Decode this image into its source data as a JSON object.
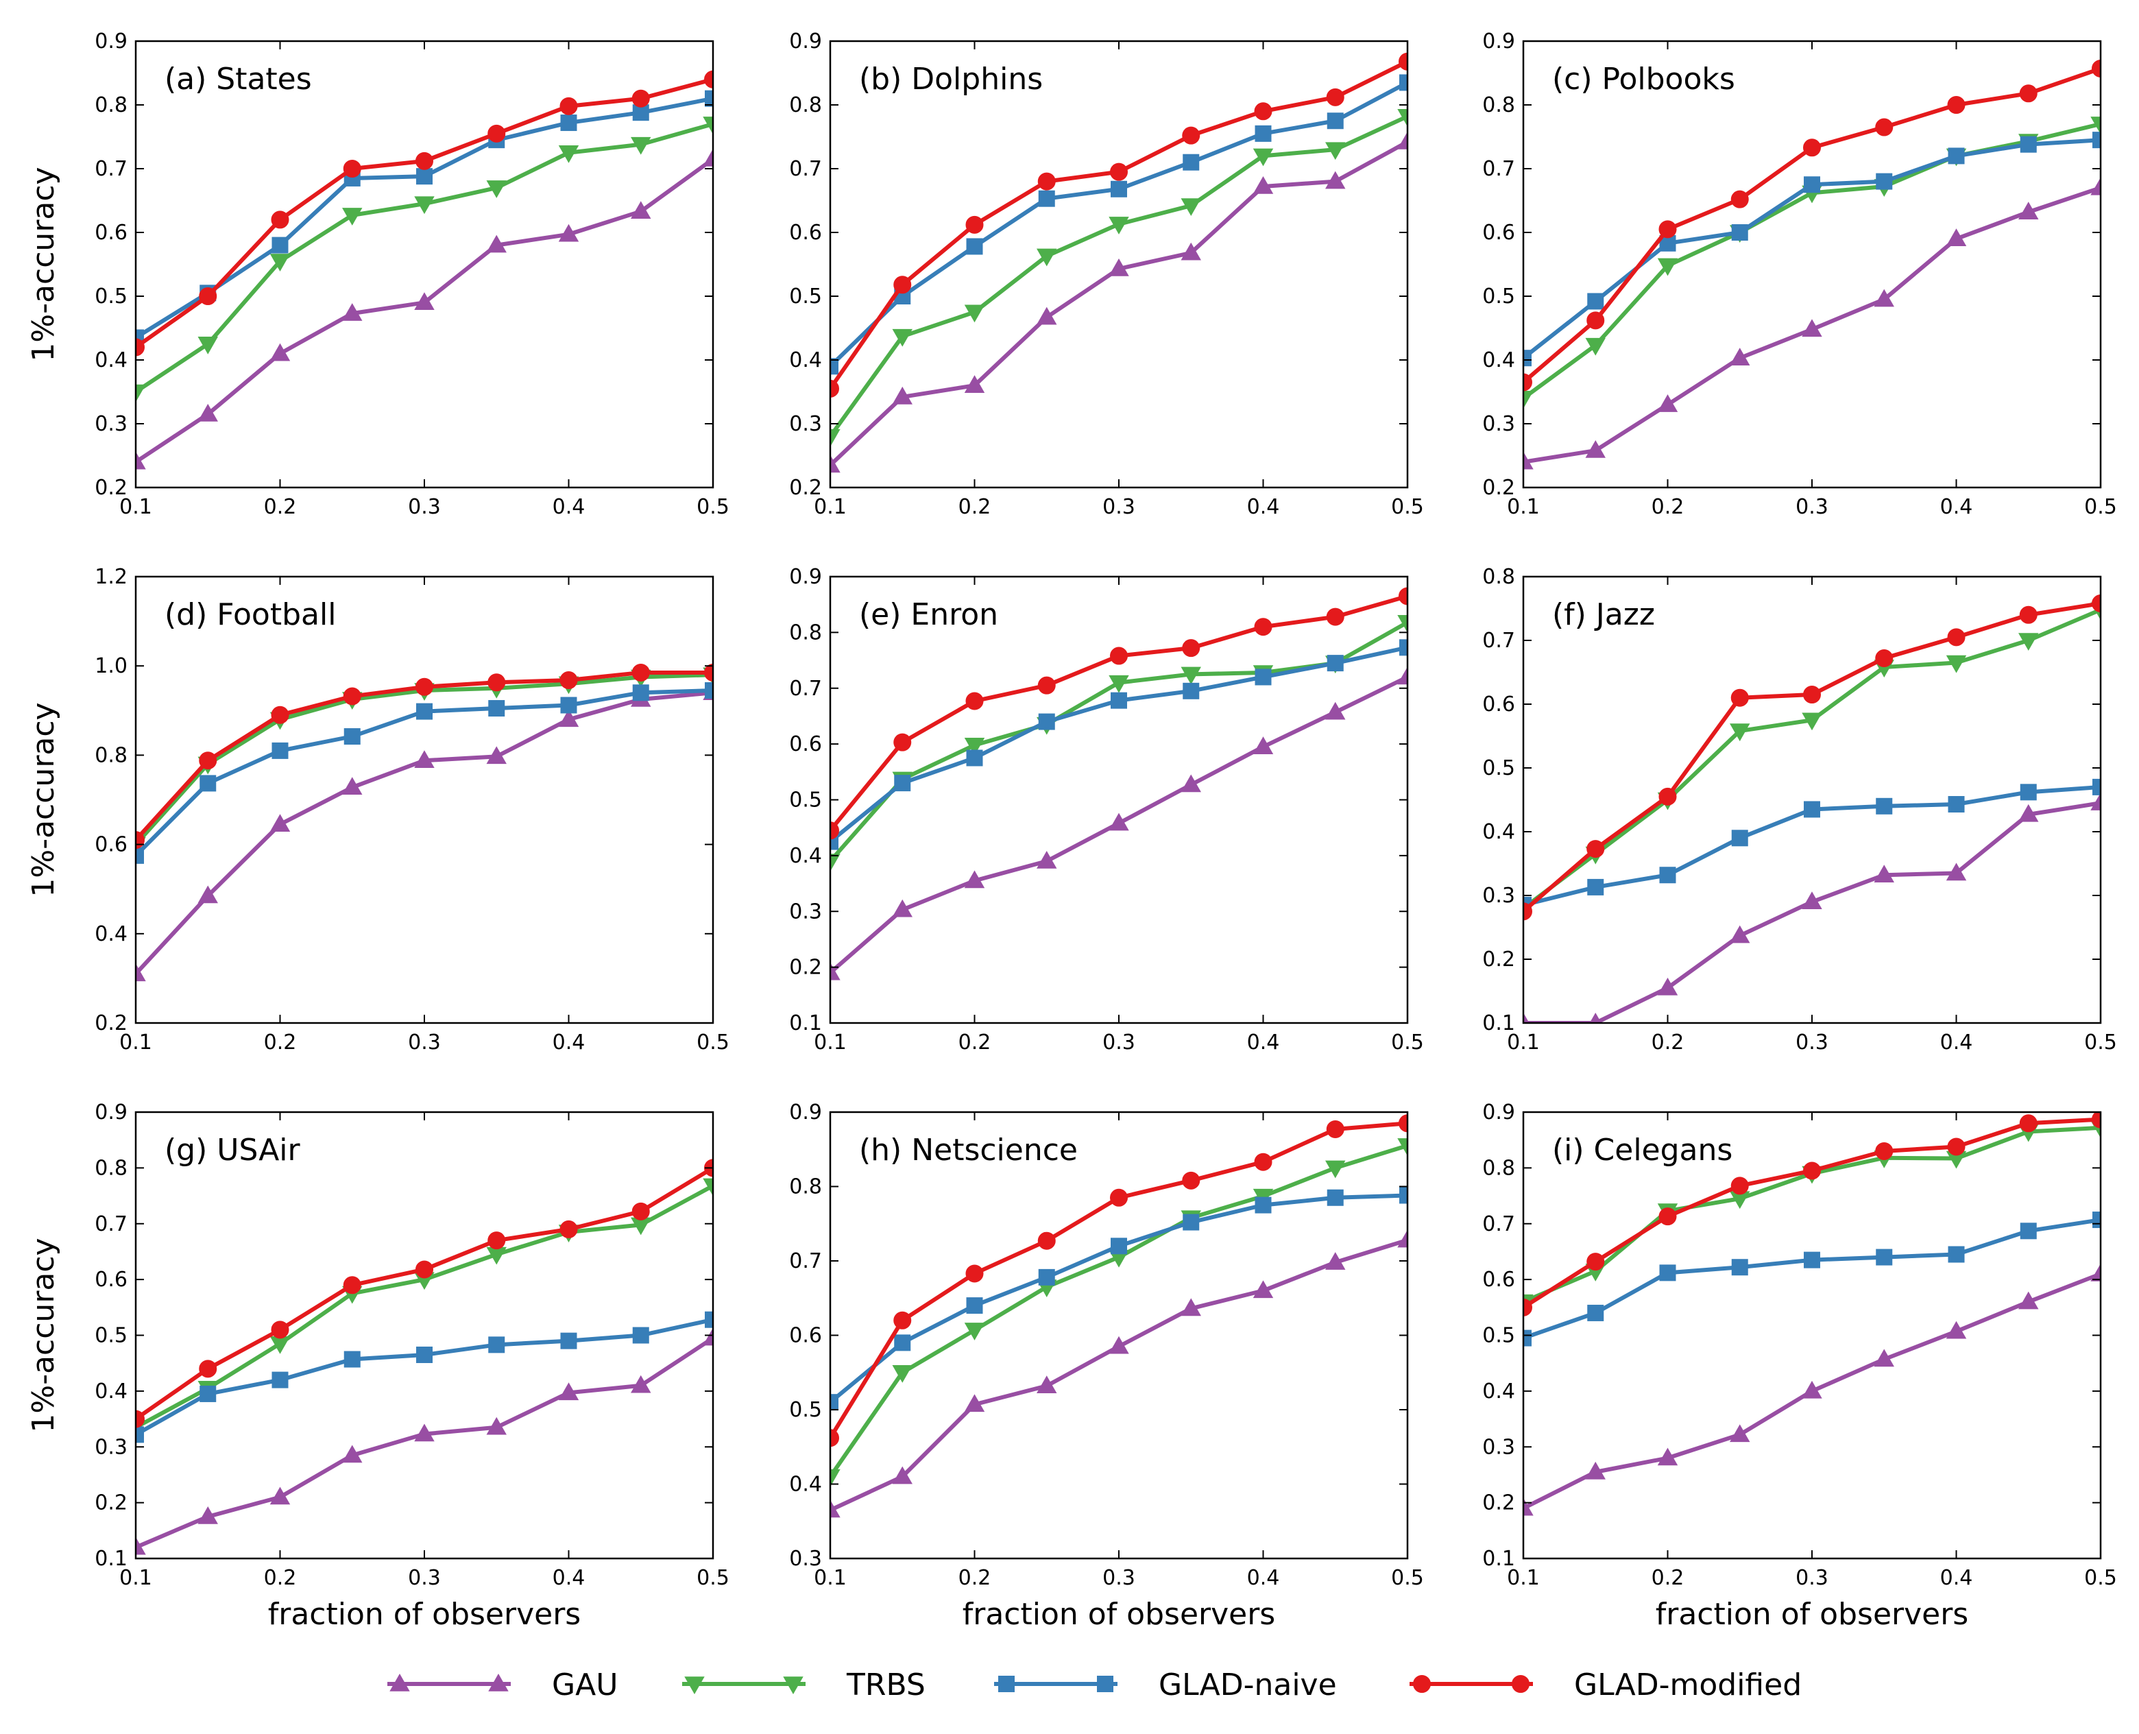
{
  "figure": {
    "xlabel": "fraction of observers",
    "ylabel": "1%-accuracy"
  },
  "series_styles": [
    {
      "name": "GAU",
      "color": "#984ea3",
      "marker": "triangle-up"
    },
    {
      "name": "TRBS",
      "color": "#4daf4a",
      "marker": "triangle-down"
    },
    {
      "name": "GLAD-naive",
      "color": "#377eb8",
      "marker": "square"
    },
    {
      "name": "GLAD-modified",
      "color": "#e41a1c",
      "marker": "circle"
    }
  ],
  "legend": {
    "items": [
      "GAU",
      "TRBS",
      "GLAD-naive",
      "GLAD-modified"
    ]
  },
  "chart_data": [
    {
      "type": "line",
      "title": "(a) States",
      "x": [
        0.1,
        0.15,
        0.2,
        0.25,
        0.3,
        0.35,
        0.4,
        0.45,
        0.5
      ],
      "xlim": [
        0.1,
        0.5
      ],
      "xticks": [
        "0.1",
        "0.2",
        "0.3",
        "0.4",
        "0.5"
      ],
      "ylim": [
        0.2,
        0.9
      ],
      "yticks": [
        "0.2",
        "0.3",
        "0.4",
        "0.5",
        "0.6",
        "0.7",
        "0.8",
        "0.9"
      ],
      "xlabel": "",
      "ylabel": "1%-accuracy",
      "series": [
        {
          "name": "GAU",
          "values": [
            0.24,
            0.315,
            0.41,
            0.473,
            0.49,
            0.58,
            0.597,
            0.633,
            0.715
          ]
        },
        {
          "name": "TRBS",
          "values": [
            0.35,
            0.425,
            0.555,
            0.627,
            0.645,
            0.67,
            0.725,
            0.738,
            0.77
          ]
        },
        {
          "name": "GLAD-naive",
          "values": [
            0.435,
            0.505,
            0.58,
            0.685,
            0.688,
            0.745,
            0.772,
            0.788,
            0.81
          ]
        },
        {
          "name": "GLAD-modified",
          "values": [
            0.42,
            0.5,
            0.62,
            0.7,
            0.712,
            0.755,
            0.798,
            0.81,
            0.84
          ]
        }
      ]
    },
    {
      "type": "line",
      "title": "(b) Dolphins",
      "x": [
        0.1,
        0.15,
        0.2,
        0.25,
        0.3,
        0.35,
        0.4,
        0.45,
        0.5
      ],
      "xlim": [
        0.1,
        0.5
      ],
      "xticks": [
        "0.1",
        "0.2",
        "0.3",
        "0.4",
        "0.5"
      ],
      "ylim": [
        0.2,
        0.9
      ],
      "yticks": [
        "0.2",
        "0.3",
        "0.4",
        "0.5",
        "0.6",
        "0.7",
        "0.8",
        "0.9"
      ],
      "xlabel": "",
      "ylabel": "",
      "series": [
        {
          "name": "GAU",
          "values": [
            0.235,
            0.342,
            0.36,
            0.467,
            0.543,
            0.568,
            0.672,
            0.68,
            0.742
          ]
        },
        {
          "name": "TRBS",
          "values": [
            0.28,
            0.437,
            0.475,
            0.563,
            0.613,
            0.642,
            0.72,
            0.73,
            0.782
          ]
        },
        {
          "name": "GLAD-naive",
          "values": [
            0.39,
            0.5,
            0.578,
            0.653,
            0.668,
            0.71,
            0.755,
            0.775,
            0.835
          ]
        },
        {
          "name": "GLAD-modified",
          "values": [
            0.355,
            0.518,
            0.612,
            0.68,
            0.695,
            0.752,
            0.79,
            0.812,
            0.868
          ]
        }
      ]
    },
    {
      "type": "line",
      "title": "(c) Polbooks",
      "x": [
        0.1,
        0.15,
        0.2,
        0.25,
        0.3,
        0.35,
        0.4,
        0.45,
        0.5
      ],
      "xlim": [
        0.1,
        0.5
      ],
      "xticks": [
        "0.1",
        "0.2",
        "0.3",
        "0.4",
        "0.5"
      ],
      "ylim": [
        0.2,
        0.9
      ],
      "yticks": [
        "0.2",
        "0.3",
        "0.4",
        "0.5",
        "0.6",
        "0.7",
        "0.8",
        "0.9"
      ],
      "xlabel": "",
      "ylabel": "",
      "series": [
        {
          "name": "GAU",
          "values": [
            0.24,
            0.258,
            0.33,
            0.403,
            0.448,
            0.495,
            0.59,
            0.632,
            0.67
          ]
        },
        {
          "name": "TRBS",
          "values": [
            0.34,
            0.423,
            0.548,
            0.6,
            0.662,
            0.672,
            0.72,
            0.743,
            0.77
          ]
        },
        {
          "name": "GLAD-naive",
          "values": [
            0.403,
            0.492,
            0.583,
            0.6,
            0.675,
            0.68,
            0.72,
            0.738,
            0.745
          ]
        },
        {
          "name": "GLAD-modified",
          "values": [
            0.365,
            0.462,
            0.605,
            0.652,
            0.733,
            0.765,
            0.8,
            0.818,
            0.857
          ]
        }
      ]
    },
    {
      "type": "line",
      "title": "(d) Football",
      "x": [
        0.1,
        0.15,
        0.2,
        0.25,
        0.3,
        0.35,
        0.4,
        0.45,
        0.5
      ],
      "xlim": [
        0.1,
        0.5
      ],
      "xticks": [
        "0.1",
        "0.2",
        "0.3",
        "0.4",
        "0.5"
      ],
      "ylim": [
        0.2,
        1.2
      ],
      "yticks": [
        "0.2",
        "0.4",
        "0.6",
        "0.8",
        "1.0",
        "1.2"
      ],
      "xlabel": "",
      "ylabel": "1%-accuracy",
      "series": [
        {
          "name": "GAU",
          "values": [
            0.31,
            0.485,
            0.645,
            0.728,
            0.788,
            0.797,
            0.88,
            0.925,
            0.94
          ]
        },
        {
          "name": "TRBS",
          "values": [
            0.6,
            0.78,
            0.88,
            0.925,
            0.945,
            0.95,
            0.96,
            0.975,
            0.98
          ]
        },
        {
          "name": "GLAD-naive",
          "values": [
            0.575,
            0.737,
            0.81,
            0.842,
            0.898,
            0.905,
            0.912,
            0.94,
            0.945
          ]
        },
        {
          "name": "GLAD-modified",
          "values": [
            0.61,
            0.788,
            0.89,
            0.932,
            0.953,
            0.963,
            0.968,
            0.985,
            0.985
          ]
        }
      ]
    },
    {
      "type": "line",
      "title": "(e) Enron",
      "x": [
        0.1,
        0.15,
        0.2,
        0.25,
        0.3,
        0.35,
        0.4,
        0.45,
        0.5
      ],
      "xlim": [
        0.1,
        0.5
      ],
      "xticks": [
        "0.1",
        "0.2",
        "0.3",
        "0.4",
        "0.5"
      ],
      "ylim": [
        0.1,
        0.9
      ],
      "yticks": [
        "0.1",
        "0.2",
        "0.3",
        "0.4",
        "0.5",
        "0.6",
        "0.7",
        "0.8",
        "0.9"
      ],
      "xlabel": "",
      "ylabel": "",
      "series": [
        {
          "name": "GAU",
          "values": [
            0.19,
            0.303,
            0.355,
            0.39,
            0.458,
            0.527,
            0.595,
            0.657,
            0.72
          ]
        },
        {
          "name": "TRBS",
          "values": [
            0.39,
            0.537,
            0.598,
            0.635,
            0.71,
            0.725,
            0.728,
            0.745,
            0.818
          ]
        },
        {
          "name": "GLAD-naive",
          "values": [
            0.425,
            0.53,
            0.575,
            0.64,
            0.678,
            0.695,
            0.72,
            0.745,
            0.773
          ]
        },
        {
          "name": "GLAD-modified",
          "values": [
            0.445,
            0.603,
            0.677,
            0.705,
            0.758,
            0.772,
            0.81,
            0.828,
            0.865
          ]
        }
      ]
    },
    {
      "type": "line",
      "title": "(f) Jazz",
      "x": [
        0.1,
        0.15,
        0.2,
        0.25,
        0.3,
        0.35,
        0.4,
        0.45,
        0.5
      ],
      "xlim": [
        0.1,
        0.5
      ],
      "xticks": [
        "0.1",
        "0.2",
        "0.3",
        "0.4",
        "0.5"
      ],
      "ylim": [
        0.1,
        0.8
      ],
      "yticks": [
        "0.1",
        "0.2",
        "0.3",
        "0.4",
        "0.5",
        "0.6",
        "0.7",
        "0.8"
      ],
      "xlabel": "",
      "ylabel": "",
      "series": [
        {
          "name": "GAU",
          "values": [
            0.1,
            0.1,
            0.155,
            0.237,
            0.29,
            0.332,
            0.335,
            0.427,
            0.445
          ]
        },
        {
          "name": "TRBS",
          "values": [
            0.28,
            0.365,
            0.45,
            0.558,
            0.575,
            0.658,
            0.665,
            0.7,
            0.748
          ]
        },
        {
          "name": "GLAD-naive",
          "values": [
            0.285,
            0.313,
            0.332,
            0.39,
            0.435,
            0.44,
            0.443,
            0.462,
            0.47
          ]
        },
        {
          "name": "GLAD-modified",
          "values": [
            0.275,
            0.373,
            0.455,
            0.61,
            0.615,
            0.672,
            0.705,
            0.74,
            0.758
          ]
        }
      ]
    },
    {
      "type": "line",
      "title": "(g) USAir",
      "x": [
        0.1,
        0.15,
        0.2,
        0.25,
        0.3,
        0.35,
        0.4,
        0.45,
        0.5
      ],
      "xlim": [
        0.1,
        0.5
      ],
      "xticks": [
        "0.1",
        "0.2",
        "0.3",
        "0.4",
        "0.5"
      ],
      "ylim": [
        0.1,
        0.9
      ],
      "yticks": [
        "0.1",
        "0.2",
        "0.3",
        "0.4",
        "0.5",
        "0.6",
        "0.7",
        "0.8",
        "0.9"
      ],
      "xlabel": "fraction of observers",
      "ylabel": "1%-accuracy",
      "series": [
        {
          "name": "GAU",
          "values": [
            0.12,
            0.175,
            0.21,
            0.285,
            0.323,
            0.335,
            0.397,
            0.41,
            0.495
          ]
        },
        {
          "name": "TRBS",
          "values": [
            0.335,
            0.405,
            0.485,
            0.575,
            0.6,
            0.645,
            0.685,
            0.698,
            0.768
          ]
        },
        {
          "name": "GLAD-naive",
          "values": [
            0.322,
            0.395,
            0.42,
            0.457,
            0.465,
            0.483,
            0.49,
            0.5,
            0.528
          ]
        },
        {
          "name": "GLAD-modified",
          "values": [
            0.35,
            0.44,
            0.51,
            0.59,
            0.618,
            0.67,
            0.69,
            0.722,
            0.8
          ]
        }
      ]
    },
    {
      "type": "line",
      "title": "(h) Netscience",
      "x": [
        0.1,
        0.15,
        0.2,
        0.25,
        0.3,
        0.35,
        0.4,
        0.45,
        0.5
      ],
      "xlim": [
        0.1,
        0.5
      ],
      "xticks": [
        "0.1",
        "0.2",
        "0.3",
        "0.4",
        "0.5"
      ],
      "ylim": [
        0.3,
        0.9
      ],
      "yticks": [
        "0.3",
        "0.4",
        "0.5",
        "0.6",
        "0.7",
        "0.8",
        "0.9"
      ],
      "xlabel": "fraction of observers",
      "ylabel": "",
      "series": [
        {
          "name": "GAU",
          "values": [
            0.365,
            0.41,
            0.507,
            0.532,
            0.585,
            0.636,
            0.66,
            0.698,
            0.728
          ]
        },
        {
          "name": "TRBS",
          "values": [
            0.41,
            0.55,
            0.607,
            0.665,
            0.705,
            0.758,
            0.787,
            0.825,
            0.855
          ]
        },
        {
          "name": "GLAD-naive",
          "values": [
            0.51,
            0.59,
            0.64,
            0.678,
            0.72,
            0.752,
            0.775,
            0.785,
            0.788
          ]
        },
        {
          "name": "GLAD-modified",
          "values": [
            0.462,
            0.62,
            0.683,
            0.727,
            0.785,
            0.808,
            0.833,
            0.877,
            0.885
          ]
        }
      ]
    },
    {
      "type": "line",
      "title": "(i) Celegans",
      "x": [
        0.1,
        0.15,
        0.2,
        0.25,
        0.3,
        0.35,
        0.4,
        0.45,
        0.5
      ],
      "xlim": [
        0.1,
        0.5
      ],
      "xticks": [
        "0.1",
        "0.2",
        "0.3",
        "0.4",
        "0.5"
      ],
      "ylim": [
        0.1,
        0.9
      ],
      "yticks": [
        "0.1",
        "0.2",
        "0.3",
        "0.4",
        "0.5",
        "0.6",
        "0.7",
        "0.8",
        "0.9"
      ],
      "xlabel": "fraction of observers",
      "ylabel": "",
      "series": [
        {
          "name": "GAU",
          "values": [
            0.19,
            0.255,
            0.28,
            0.322,
            0.4,
            0.457,
            0.507,
            0.56,
            0.61
          ]
        },
        {
          "name": "TRBS",
          "values": [
            0.56,
            0.615,
            0.723,
            0.745,
            0.79,
            0.818,
            0.817,
            0.865,
            0.872
          ]
        },
        {
          "name": "GLAD-naive",
          "values": [
            0.495,
            0.54,
            0.612,
            0.622,
            0.635,
            0.64,
            0.645,
            0.687,
            0.707
          ]
        },
        {
          "name": "GLAD-modified",
          "values": [
            0.55,
            0.632,
            0.713,
            0.768,
            0.795,
            0.83,
            0.838,
            0.88,
            0.887
          ]
        }
      ]
    }
  ]
}
